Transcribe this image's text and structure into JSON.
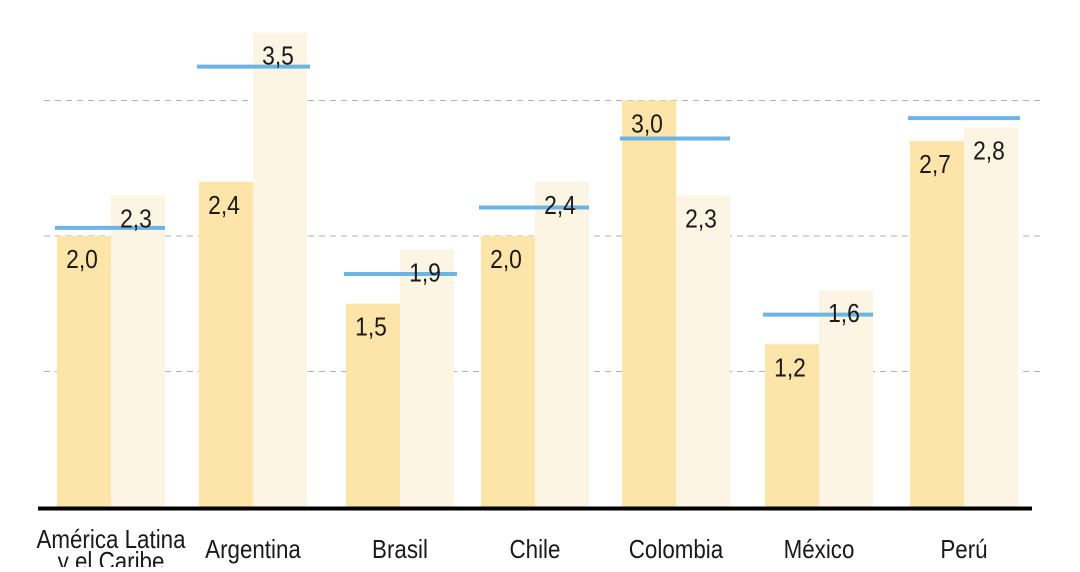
{
  "chart_data": {
    "type": "bar",
    "title": "",
    "xlabel": "",
    "ylabel": "",
    "ylim": [
      0,
      3.5
    ],
    "grid": true,
    "gridlines": [
      1,
      2,
      3
    ],
    "categories": [
      "América Latina y el Caribe",
      "Argentina",
      "Brasil",
      "Chile",
      "Colombia",
      "México",
      "Perú"
    ],
    "category_lines": [
      [
        "América Latina",
        "y el Caribe"
      ],
      [
        "Argentina"
      ],
      [
        "Brasil"
      ],
      [
        "Chile"
      ],
      [
        "Colombia"
      ],
      [
        "México"
      ],
      [
        "Perú"
      ]
    ],
    "series": [
      {
        "color": "#fde4a8",
        "values": [
          2.0,
          2.4,
          1.5,
          2.0,
          3.0,
          1.2,
          2.7
        ],
        "labels": [
          "2,0",
          "2,4",
          "1,5",
          "2,0",
          "3,0",
          "1,2",
          "2,7"
        ]
      },
      {
        "color": "#fdf5e4",
        "values": [
          2.3,
          3.5,
          1.9,
          2.4,
          2.3,
          1.6,
          2.8
        ],
        "labels": [
          "2,3",
          "3,5",
          "1,9",
          "2,4",
          "2,3",
          "1,6",
          "2,8"
        ]
      }
    ],
    "reference_lines": {
      "color": "#6cb4e4",
      "values": [
        2.06,
        3.25,
        1.72,
        2.21,
        2.72,
        1.42,
        2.87
      ]
    },
    "colors": {
      "axis": "#000000",
      "grid": "#b0b0b0",
      "text": "#1a1a1a"
    }
  }
}
